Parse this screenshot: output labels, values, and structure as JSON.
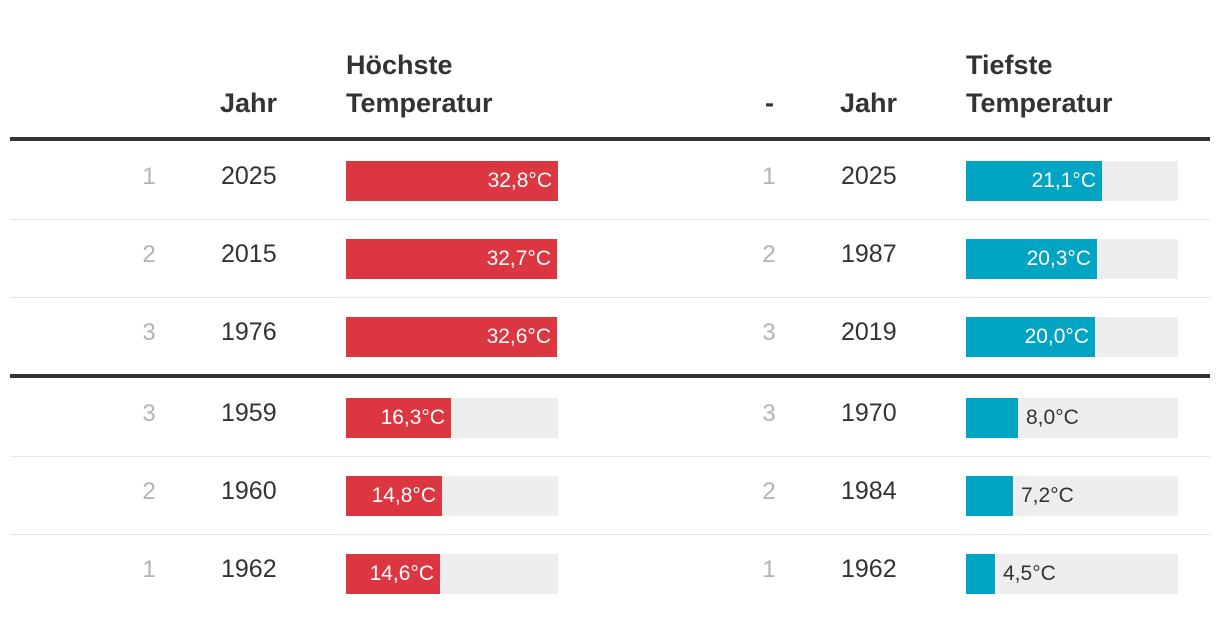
{
  "header": {
    "left_year": "Jahr",
    "left_temp_line1": "Höchste",
    "left_temp_line2": "Temperatur",
    "right_rank": "-",
    "right_year": "Jahr",
    "right_temp_line1": "Tiefste",
    "right_temp_line2": "Temperatur"
  },
  "colors": {
    "hot": "#dc3740",
    "cold": "#02a4c4",
    "track": "#eeeeee"
  },
  "scale_max": 32.8,
  "rows": [
    {
      "l_rank": "1",
      "l_year": "2025",
      "l_value": 32.8,
      "l_label": "32,8°C",
      "r_rank": "1",
      "r_year": "2025",
      "r_value": 21.1,
      "r_label": "21,1°C"
    },
    {
      "l_rank": "2",
      "l_year": "2015",
      "l_value": 32.7,
      "l_label": "32,7°C",
      "r_rank": "2",
      "r_year": "1987",
      "r_value": 20.3,
      "r_label": "20,3°C"
    },
    {
      "l_rank": "3",
      "l_year": "1976",
      "l_value": 32.6,
      "l_label": "32,6°C",
      "r_rank": "3",
      "r_year": "2019",
      "r_value": 20.0,
      "r_label": "20,0°C"
    },
    {
      "l_rank": "3",
      "l_year": "1959",
      "l_value": 16.3,
      "l_label": "16,3°C",
      "r_rank": "3",
      "r_year": "1970",
      "r_value": 8.0,
      "r_label": "8,0°C"
    },
    {
      "l_rank": "2",
      "l_year": "1960",
      "l_value": 14.8,
      "l_label": "14,8°C",
      "r_rank": "2",
      "r_year": "1984",
      "r_value": 7.2,
      "r_label": "7,2°C"
    },
    {
      "l_rank": "1",
      "l_year": "1962",
      "l_value": 14.6,
      "l_label": "14,6°C",
      "r_rank": "1",
      "r_year": "1962",
      "r_value": 4.5,
      "r_label": "4,5°C"
    }
  ]
}
